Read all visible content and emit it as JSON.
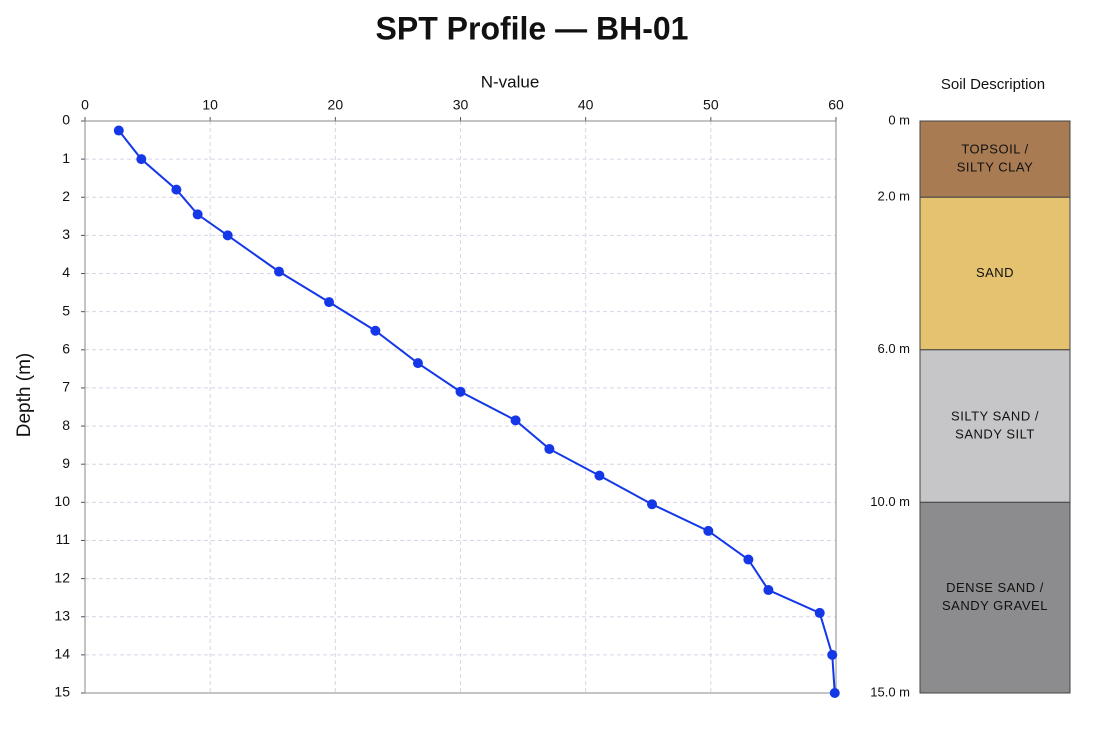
{
  "chart_data": [
    {
      "type": "line",
      "title": "SPT Profile — BH-01",
      "xlabel": "N-value",
      "ylabel": "Depth (m)",
      "x": [
        2.7,
        4.5,
        7.3,
        9.0,
        11.4,
        15.5,
        19.5,
        23.2,
        26.6,
        30.0,
        34.4,
        37.1,
        41.1,
        45.3,
        49.8,
        53.0,
        54.6,
        58.7,
        59.7,
        59.9
      ],
      "values": [
        0.25,
        1.0,
        1.8,
        2.45,
        3.0,
        3.95,
        4.75,
        5.5,
        6.35,
        7.1,
        7.85,
        8.6,
        9.3,
        10.05,
        10.75,
        11.5,
        12.3,
        12.9,
        14.0,
        15.0
      ],
      "color": "#1437e8",
      "xlim": [
        0,
        60
      ],
      "xticks": [
        0,
        10,
        20,
        30,
        40,
        50,
        60
      ],
      "ylim": [
        0,
        15
      ],
      "yticks": [
        0,
        1,
        2,
        3,
        4,
        5,
        6,
        7,
        8,
        9,
        10,
        11,
        12,
        13,
        14,
        15
      ],
      "y_inverted": true,
      "grid": true
    },
    {
      "type": "strata",
      "title": "Soil Description",
      "ylim": [
        0,
        15
      ],
      "boundaries": [
        {
          "value": 0,
          "label": "0 m"
        },
        {
          "value": 2,
          "label": "2.0 m"
        },
        {
          "value": 6,
          "label": "6.0 m"
        },
        {
          "value": 10,
          "label": "10.0 m"
        },
        {
          "value": 15,
          "label": "15.0 m"
        }
      ],
      "layers": [
        {
          "lines": [
            "TOPSOIL /",
            "SILTY CLAY"
          ],
          "color": "#a97b52"
        },
        {
          "lines": [
            "SAND"
          ],
          "color": "#e4c270"
        },
        {
          "lines": [
            "SILTY SAND /",
            "SANDY SILT"
          ],
          "color": "#c6c6c8"
        },
        {
          "lines": [
            "DENSE SAND /",
            "SANDY GRAVEL"
          ],
          "color": "#8c8c8e"
        }
      ]
    }
  ]
}
